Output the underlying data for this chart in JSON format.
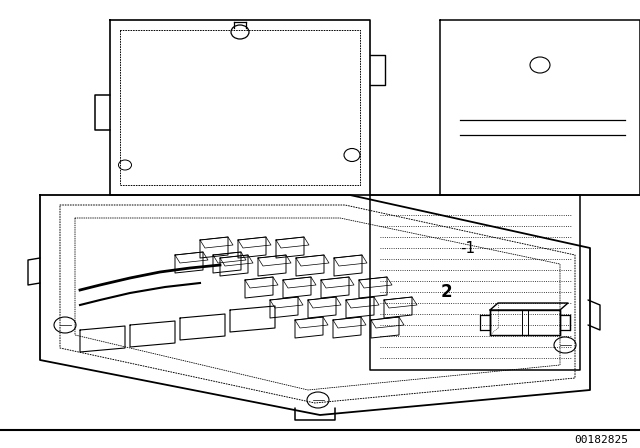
{
  "background_color": "#ffffff",
  "line_color": "#000000",
  "part_number_text": "00182825",
  "label_1": "-1",
  "label_2": "2",
  "figsize": [
    6.4,
    4.48
  ],
  "dpi": 100
}
